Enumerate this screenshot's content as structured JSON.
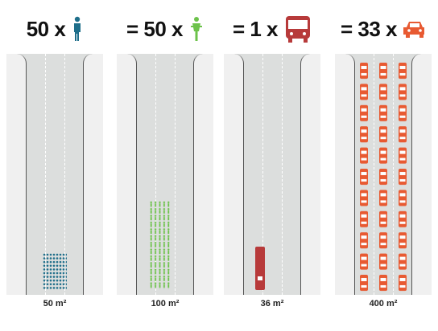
{
  "panels": [
    {
      "header": "50 x",
      "caption": "50 m²",
      "icon": "pedestrian-icon",
      "color": "#1e6e8a"
    },
    {
      "header": "= 50 x",
      "caption": "100 m²",
      "icon": "bicycle-icon",
      "color": "#6cc24a"
    },
    {
      "header": "= 1 x",
      "caption": "36 m²",
      "icon": "bus-icon",
      "color": "#b73a3a"
    },
    {
      "header": "= 33 x",
      "caption": "400 m²",
      "icon": "car-icon",
      "color": "#e85a32"
    }
  ]
}
